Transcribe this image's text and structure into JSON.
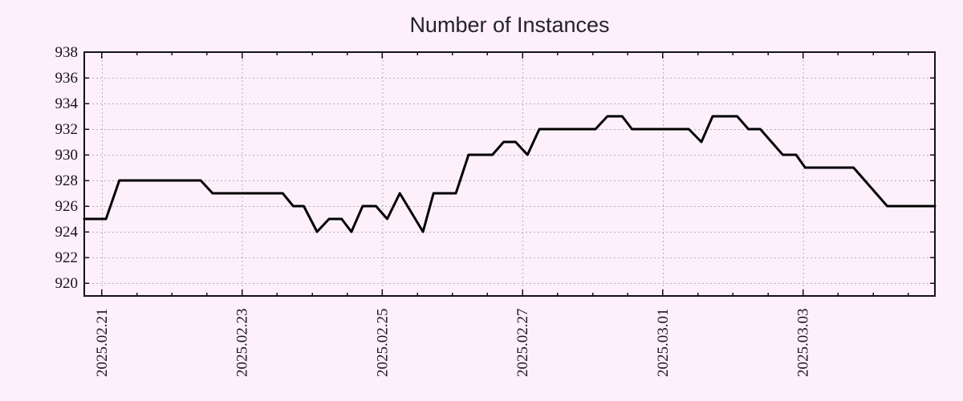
{
  "chart_data": {
    "type": "line",
    "title": "Number of Instances",
    "x_axis": {
      "tick_labels": [
        "2025.02.21",
        "2025.02.23",
        "2025.02.25",
        "2025.02.27",
        "2025.03.01",
        "2025.03.03"
      ],
      "tick_offsets_days": [
        0,
        2,
        4,
        6,
        8,
        10
      ],
      "minor_tick_step_days": 0.5,
      "range_days": [
        -0.25,
        11.88
      ]
    },
    "y_axis": {
      "tick_values": [
        920,
        922,
        924,
        926,
        928,
        930,
        932,
        934,
        936,
        938
      ],
      "range": [
        919,
        938
      ]
    },
    "series": [
      {
        "name": "instances",
        "color": "#000000",
        "points": [
          [
            -0.25,
            925
          ],
          [
            0.06,
            925
          ],
          [
            0.25,
            928
          ],
          [
            1.41,
            928
          ],
          [
            1.58,
            927
          ],
          [
            2.58,
            927
          ],
          [
            2.73,
            926
          ],
          [
            2.88,
            926
          ],
          [
            3.07,
            924
          ],
          [
            3.24,
            925
          ],
          [
            3.42,
            925
          ],
          [
            3.56,
            924
          ],
          [
            3.72,
            926
          ],
          [
            3.91,
            926
          ],
          [
            4.07,
            925
          ],
          [
            4.25,
            927
          ],
          [
            4.58,
            924
          ],
          [
            4.73,
            927
          ],
          [
            5.05,
            927
          ],
          [
            5.23,
            930
          ],
          [
            5.57,
            930
          ],
          [
            5.73,
            931
          ],
          [
            5.9,
            931
          ],
          [
            6.07,
            930
          ],
          [
            6.24,
            932
          ],
          [
            7.04,
            932
          ],
          [
            7.21,
            933
          ],
          [
            7.42,
            933
          ],
          [
            7.56,
            932
          ],
          [
            8.37,
            932
          ],
          [
            8.55,
            931
          ],
          [
            8.71,
            933
          ],
          [
            9.06,
            933
          ],
          [
            9.22,
            932
          ],
          [
            9.39,
            932
          ],
          [
            9.71,
            930
          ],
          [
            9.9,
            930
          ],
          [
            10.03,
            929
          ],
          [
            10.72,
            929
          ],
          [
            11.2,
            926
          ],
          [
            11.88,
            926
          ]
        ]
      }
    ],
    "grid": {
      "style": "dotted",
      "color": "#b5aeb5"
    },
    "legend": "none",
    "colors": {
      "background": "#fdf0fa",
      "axis": "#15101a",
      "line": "#000000",
      "text": "#171219"
    }
  }
}
